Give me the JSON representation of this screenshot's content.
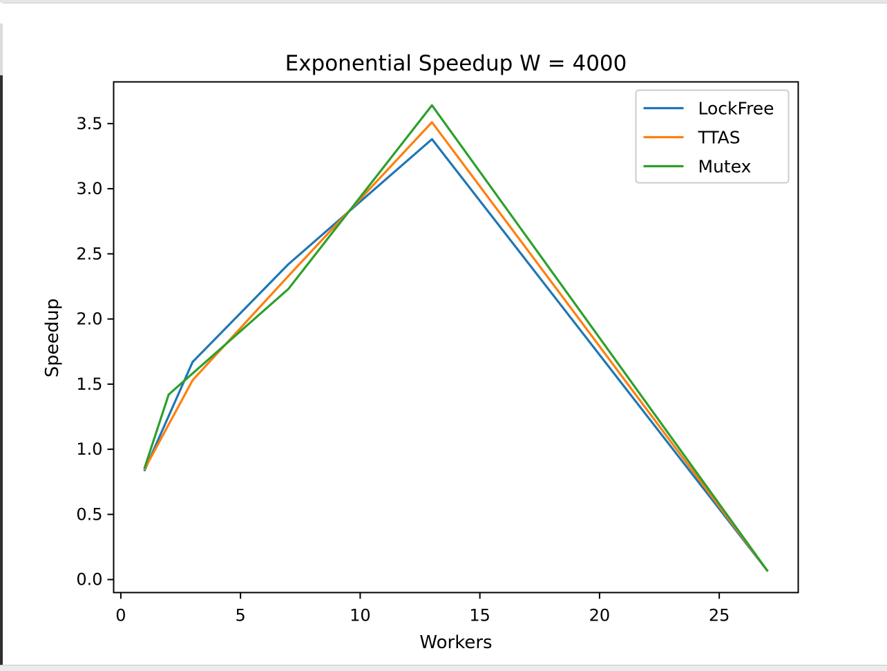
{
  "chart_data": {
    "type": "line",
    "title": "Exponential Speedup W = 4000",
    "xlabel": "Workers",
    "ylabel": "Speedup",
    "xlim": [
      -0.3,
      28.3
    ],
    "ylim": [
      -0.1,
      3.82
    ],
    "xticks": [
      0,
      5,
      10,
      15,
      20,
      25
    ],
    "yticks": [
      0.0,
      0.5,
      1.0,
      1.5,
      2.0,
      2.5,
      3.0,
      3.5
    ],
    "xtick_labels": [
      "0",
      "5",
      "10",
      "15",
      "20",
      "25"
    ],
    "ytick_labels": [
      "0.0",
      "0.5",
      "1.0",
      "1.5",
      "2.0",
      "2.5",
      "3.0",
      "3.5"
    ],
    "grid": false,
    "legend_position": "top-right",
    "series": [
      {
        "name": "LockFree",
        "color": "#1f77b4",
        "x": [
          1,
          3,
          7,
          13,
          27
        ],
        "y": [
          0.84,
          1.67,
          2.42,
          3.38,
          0.07
        ]
      },
      {
        "name": "TTAS",
        "color": "#ff7f0e",
        "x": [
          1,
          3,
          7,
          13,
          27
        ],
        "y": [
          0.85,
          1.53,
          2.33,
          3.51,
          0.07
        ]
      },
      {
        "name": "Mutex",
        "color": "#2ca02c",
        "x": [
          1,
          2,
          7,
          13,
          27
        ],
        "y": [
          0.86,
          1.42,
          2.23,
          3.64,
          0.07
        ]
      }
    ]
  }
}
